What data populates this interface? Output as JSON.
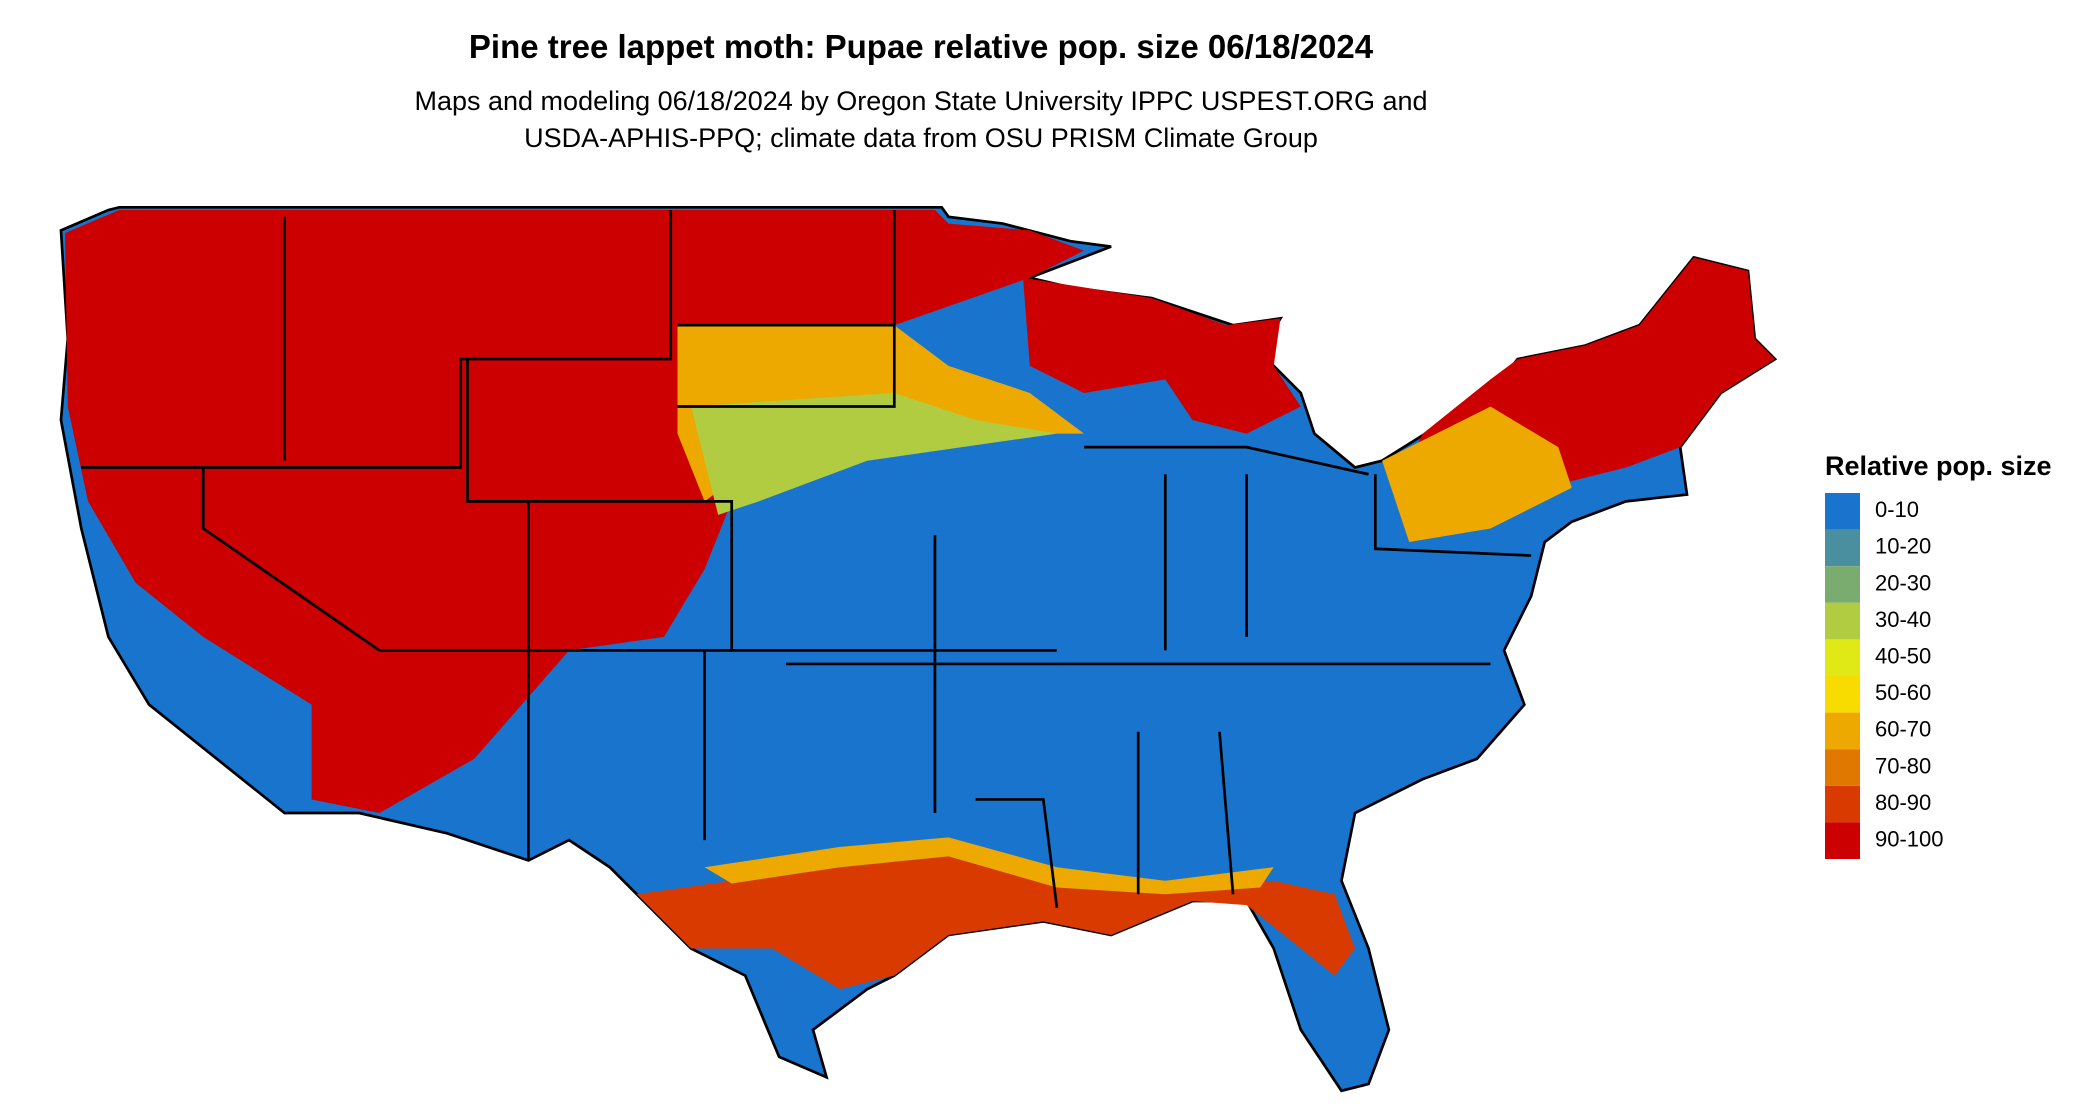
{
  "title": "Pine tree lappet moth: Pupae relative pop. size 06/18/2024",
  "subtitle": [
    "Maps and modeling 06/18/2024 by Oregon State University IPPC USPEST.ORG and",
    "USDA-APHIS-PPQ; climate data from OSU PRISM Climate Group"
  ],
  "legend": {
    "title": "Relative pop. size",
    "items": [
      {
        "label": "0-10",
        "color": "#1874cd"
      },
      {
        "label": "10-20",
        "color": "#4a8fa0"
      },
      {
        "label": "20-30",
        "color": "#7aab6f"
      },
      {
        "label": "30-40",
        "color": "#b2cc41"
      },
      {
        "label": "40-50",
        "color": "#e0e916"
      },
      {
        "label": "50-60",
        "color": "#f8dc00"
      },
      {
        "label": "60-70",
        "color": "#eea900"
      },
      {
        "label": "70-80",
        "color": "#e07800"
      },
      {
        "label": "80-90",
        "color": "#d83a00"
      },
      {
        "label": "90-100",
        "color": "#cc0000"
      }
    ]
  }
}
